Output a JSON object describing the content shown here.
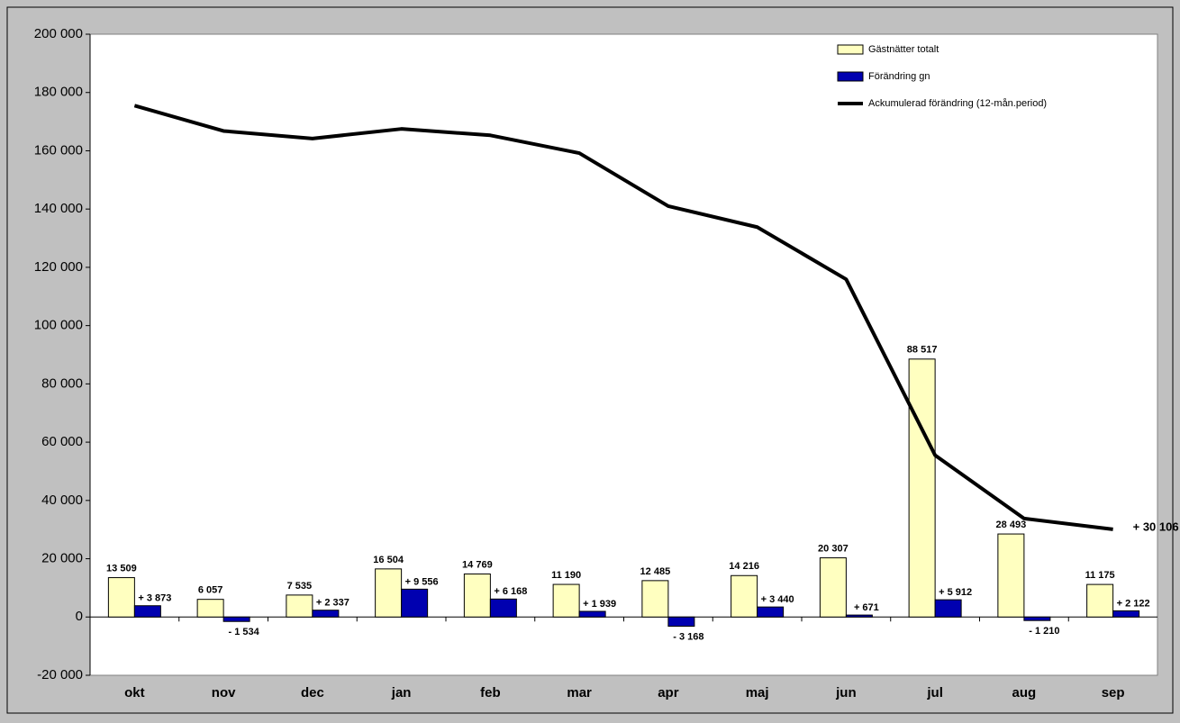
{
  "chart_data": {
    "type": "bar_line",
    "categories": [
      "okt",
      "nov",
      "dec",
      "jan",
      "feb",
      "mar",
      "apr",
      "maj",
      "jun",
      "jul",
      "aug",
      "sep"
    ],
    "series": [
      {
        "name": "Gästnätter totalt",
        "type": "bar",
        "color": "#ffffc0",
        "values": [
          13509,
          6057,
          7535,
          16504,
          14769,
          11190,
          12485,
          14216,
          20307,
          88517,
          28493,
          11175
        ],
        "value_labels": [
          "13 509",
          "6 057",
          "7 535",
          "16 504",
          "14 769",
          "11 190",
          "12 485",
          "14 216",
          "20 307",
          "88 517",
          "28 493",
          "11 175"
        ]
      },
      {
        "name": "Förändring gn",
        "type": "bar",
        "color": "#0000b0",
        "values": [
          3873,
          -1534,
          2337,
          9556,
          6168,
          1939,
          -3168,
          3440,
          671,
          5912,
          -1210,
          2122
        ],
        "value_labels": [
          "+ 3 873",
          "- 1 534",
          "+ 2 337",
          "+ 9 556",
          "+ 6 168",
          "+ 1 939",
          "- 3 168",
          "+ 3 440",
          "+  671",
          "+ 5 912",
          "- 1 210",
          "+ 2 122"
        ]
      },
      {
        "name": "Ackumulerad förändring (12-mån.period)",
        "type": "line",
        "color": "#000000",
        "values": [
          175500,
          166800,
          164200,
          167500,
          165300,
          159200,
          141000,
          133800,
          115900,
          55500,
          33800,
          30106
        ],
        "value_labels": [
          null,
          null,
          null,
          null,
          null,
          null,
          null,
          null,
          null,
          null,
          null,
          "+ 30 106"
        ]
      }
    ],
    "ylim": [
      -20000,
      200000
    ],
    "yticks": [
      {
        "value": -20000,
        "label": "-20 000"
      },
      0,
      {
        "value": 20000,
        "label": "20 000"
      },
      {
        "value": 40000,
        "label": "40 000"
      },
      {
        "value": 60000,
        "label": "60 000"
      },
      {
        "value": 80000,
        "label": "80 000"
      },
      {
        "value": 100000,
        "label": "100 000"
      },
      {
        "value": 120000,
        "label": "120 000"
      },
      {
        "value": 140000,
        "label": "140 000"
      },
      {
        "value": 160000,
        "label": "160 000"
      },
      {
        "value": 180000,
        "label": "180 000"
      },
      {
        "value": 200000,
        "label": "200 000"
      }
    ],
    "grid": false,
    "legend": "top-right"
  }
}
